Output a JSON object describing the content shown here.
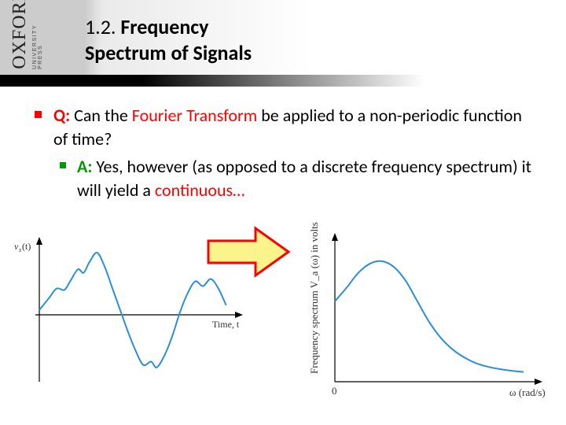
{
  "publisher": {
    "main": "OXFORD",
    "sub": "UNIVERSITY PRESS"
  },
  "title": {
    "prefix": "1.2. ",
    "line1_bold": "Frequency",
    "line2_bold": "Spectrum of Signals"
  },
  "question": {
    "label": "Q:",
    "text_before": " Can the ",
    "highlight": "Fourier Transform",
    "text_after": " be applied to a non-periodic function of time?"
  },
  "answer": {
    "label": "A:",
    "text_before": " Yes, however (as opposed to a discrete frequency spectrum) it will yield a ",
    "highlight": "continuous…"
  },
  "left_chart": {
    "type": "line",
    "xlabel": "Time, t",
    "ylabel": "v_s(t)",
    "line_color": "#2b8fd9",
    "axis_color": "#000000",
    "background_color": "#ffffff",
    "line_width": 2,
    "xlim": [
      0,
      10
    ],
    "ylim": [
      -1.2,
      1.4
    ],
    "points": [
      [
        0.0,
        0.1
      ],
      [
        0.5,
        0.35
      ],
      [
        0.9,
        0.55
      ],
      [
        1.3,
        0.52
      ],
      [
        1.6,
        0.7
      ],
      [
        2.0,
        0.95
      ],
      [
        2.3,
        0.88
      ],
      [
        2.6,
        1.1
      ],
      [
        3.0,
        1.3
      ],
      [
        3.4,
        1.0
      ],
      [
        3.8,
        0.55
      ],
      [
        4.2,
        0.1
      ],
      [
        4.6,
        -0.35
      ],
      [
        5.0,
        -0.75
      ],
      [
        5.4,
        -1.05
      ],
      [
        5.8,
        -0.98
      ],
      [
        6.1,
        -1.1
      ],
      [
        6.5,
        -0.85
      ],
      [
        6.9,
        -0.45
      ],
      [
        7.3,
        0.05
      ],
      [
        7.7,
        0.45
      ],
      [
        8.1,
        0.7
      ],
      [
        8.5,
        0.6
      ],
      [
        8.9,
        0.75
      ],
      [
        9.3,
        0.55
      ],
      [
        9.7,
        0.2
      ]
    ]
  },
  "right_chart": {
    "type": "line",
    "xlabel": "ω (rad/s)",
    "ylabel": "Frequency spectrum V_a (ω) in volts",
    "origin_label": "0",
    "line_color": "#2b8fd9",
    "axis_color": "#000000",
    "background_color": "#ffffff",
    "line_width": 2,
    "xlim": [
      0,
      10
    ],
    "ylim": [
      0,
      1.2
    ],
    "points": [
      [
        0.0,
        0.7
      ],
      [
        0.6,
        0.82
      ],
      [
        1.2,
        0.95
      ],
      [
        1.8,
        1.03
      ],
      [
        2.4,
        1.05
      ],
      [
        3.0,
        1.0
      ],
      [
        3.6,
        0.88
      ],
      [
        4.2,
        0.7
      ],
      [
        4.8,
        0.52
      ],
      [
        5.4,
        0.38
      ],
      [
        6.0,
        0.28
      ],
      [
        6.6,
        0.21
      ],
      [
        7.2,
        0.16
      ],
      [
        7.8,
        0.13
      ],
      [
        8.4,
        0.11
      ],
      [
        9.0,
        0.095
      ],
      [
        9.6,
        0.085
      ]
    ]
  },
  "arrow": {
    "fill_color": "#fbf48b",
    "stroke_color": "#ff0000",
    "stroke_width": 3
  }
}
